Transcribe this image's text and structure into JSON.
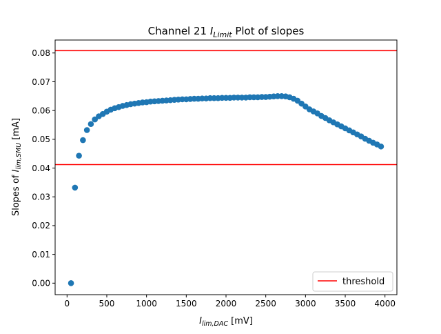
{
  "chart_data": {
    "type": "scatter",
    "title_prefix": "Channel 21 ",
    "title_italic": "I",
    "title_italic_sub": "Limit",
    "title_suffix": " Plot of slopes",
    "xlabel": {
      "base": "I",
      "sub": "lim,DAC",
      "unit": " [mV]"
    },
    "ylabel": {
      "prefix": "Slopes of ",
      "base": "I",
      "sub": "lim,SMU",
      "unit": " [mA]"
    },
    "xlim": [
      -150,
      4150
    ],
    "ylim": [
      -0.004,
      0.0845
    ],
    "xticks": [
      0,
      500,
      1000,
      1500,
      2000,
      2500,
      3000,
      3500,
      4000
    ],
    "xtick_labels": [
      "0",
      "500",
      "1000",
      "1500",
      "2000",
      "2500",
      "3000",
      "3500",
      "4000"
    ],
    "yticks": [
      0.0,
      0.01,
      0.02,
      0.03,
      0.04,
      0.05,
      0.06,
      0.07,
      0.08
    ],
    "ytick_labels": [
      "0.00",
      "0.01",
      "0.02",
      "0.03",
      "0.04",
      "0.05",
      "0.06",
      "0.07",
      "0.08"
    ],
    "thresholds": [
      0.0808,
      0.0412
    ],
    "threshold_color": "#ff0000",
    "legend": {
      "label": "threshold",
      "placement": "lower right"
    },
    "grid": false,
    "marker_color": "#1f77b4",
    "series": [
      {
        "x": [
          50,
          100,
          150,
          200,
          250,
          300,
          350,
          400,
          450,
          500,
          550,
          600,
          650,
          700,
          750,
          800,
          850,
          900,
          950,
          1000,
          1050,
          1100,
          1150,
          1200,
          1250,
          1300,
          1350,
          1400,
          1450,
          1500,
          1550,
          1600,
          1650,
          1700,
          1750,
          1800,
          1850,
          1900,
          1950,
          2000,
          2050,
          2100,
          2150,
          2200,
          2250,
          2300,
          2350,
          2400,
          2450,
          2500,
          2550,
          2600,
          2650,
          2700,
          2750,
          2800,
          2850,
          2900,
          2950,
          3000,
          3050,
          3100,
          3150,
          3200,
          3250,
          3300,
          3350,
          3400,
          3450,
          3500,
          3550,
          3600,
          3650,
          3700,
          3750,
          3800,
          3850,
          3900,
          3950
        ],
        "y": [
          0.0,
          0.0332,
          0.0443,
          0.0497,
          0.0532,
          0.0553,
          0.0569,
          0.058,
          0.0588,
          0.0596,
          0.0603,
          0.0608,
          0.0612,
          0.0616,
          0.0619,
          0.0622,
          0.0624,
          0.0626,
          0.0628,
          0.0629,
          0.0631,
          0.0632,
          0.0633,
          0.0634,
          0.0635,
          0.0636,
          0.0637,
          0.0638,
          0.0639,
          0.0639,
          0.064,
          0.0641,
          0.0641,
          0.0642,
          0.0642,
          0.0643,
          0.0643,
          0.0643,
          0.0644,
          0.0644,
          0.0644,
          0.0645,
          0.0645,
          0.0645,
          0.0645,
          0.0646,
          0.0646,
          0.0646,
          0.0647,
          0.0647,
          0.0648,
          0.0649,
          0.065,
          0.065,
          0.0649,
          0.0646,
          0.0641,
          0.0634,
          0.0624,
          0.0614,
          0.0604,
          0.0597,
          0.059,
          0.0581,
          0.0574,
          0.0566,
          0.0559,
          0.0552,
          0.0545,
          0.0538,
          0.0531,
          0.0524,
          0.0517,
          0.051,
          0.0502,
          0.0495,
          0.0488,
          0.0482,
          0.0475
        ]
      }
    ]
  }
}
